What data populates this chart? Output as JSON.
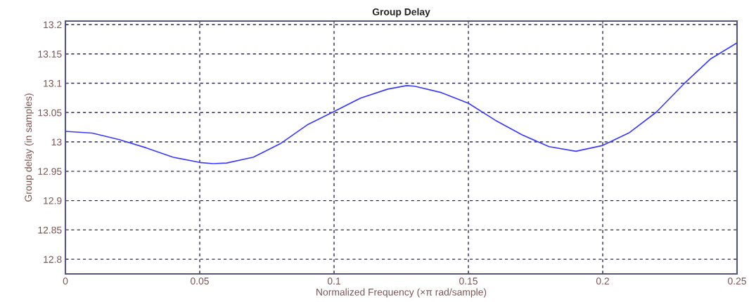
{
  "chart_data": {
    "type": "line",
    "title": "Group Delay",
    "xlabel": "Normalized Frequency (×π rad/sample)",
    "ylabel": "Group delay (in samples)",
    "x": [
      0,
      0.01,
      0.02,
      0.03,
      0.04,
      0.05,
      0.055,
      0.06,
      0.07,
      0.08,
      0.09,
      0.1,
      0.11,
      0.12,
      0.127,
      0.13,
      0.14,
      0.15,
      0.16,
      0.17,
      0.18,
      0.19,
      0.2,
      0.21,
      0.22,
      0.23,
      0.24,
      0.25
    ],
    "series": [
      {
        "color": "#3a3aff",
        "values": [
          13.018,
          13.015,
          13.004,
          12.99,
          12.974,
          12.965,
          12.963,
          12.964,
          12.974,
          12.997,
          13.029,
          13.052,
          13.075,
          13.09,
          13.096,
          13.095,
          13.084,
          13.066,
          13.037,
          13.012,
          12.992,
          12.984,
          12.994,
          13.016,
          13.051,
          13.098,
          13.141,
          13.169
        ]
      }
    ],
    "xlim": [
      0,
      0.25
    ],
    "xticks": [
      0,
      0.05,
      0.1,
      0.15,
      0.2,
      0.25
    ],
    "ylim": [
      12.775,
      13.206
    ],
    "yticks": [
      12.8,
      12.85,
      12.9,
      12.95,
      13,
      13.05,
      13.1,
      13.15,
      13.2
    ],
    "grid": true,
    "legend": false,
    "marker": "none",
    "line_style": "solid"
  }
}
